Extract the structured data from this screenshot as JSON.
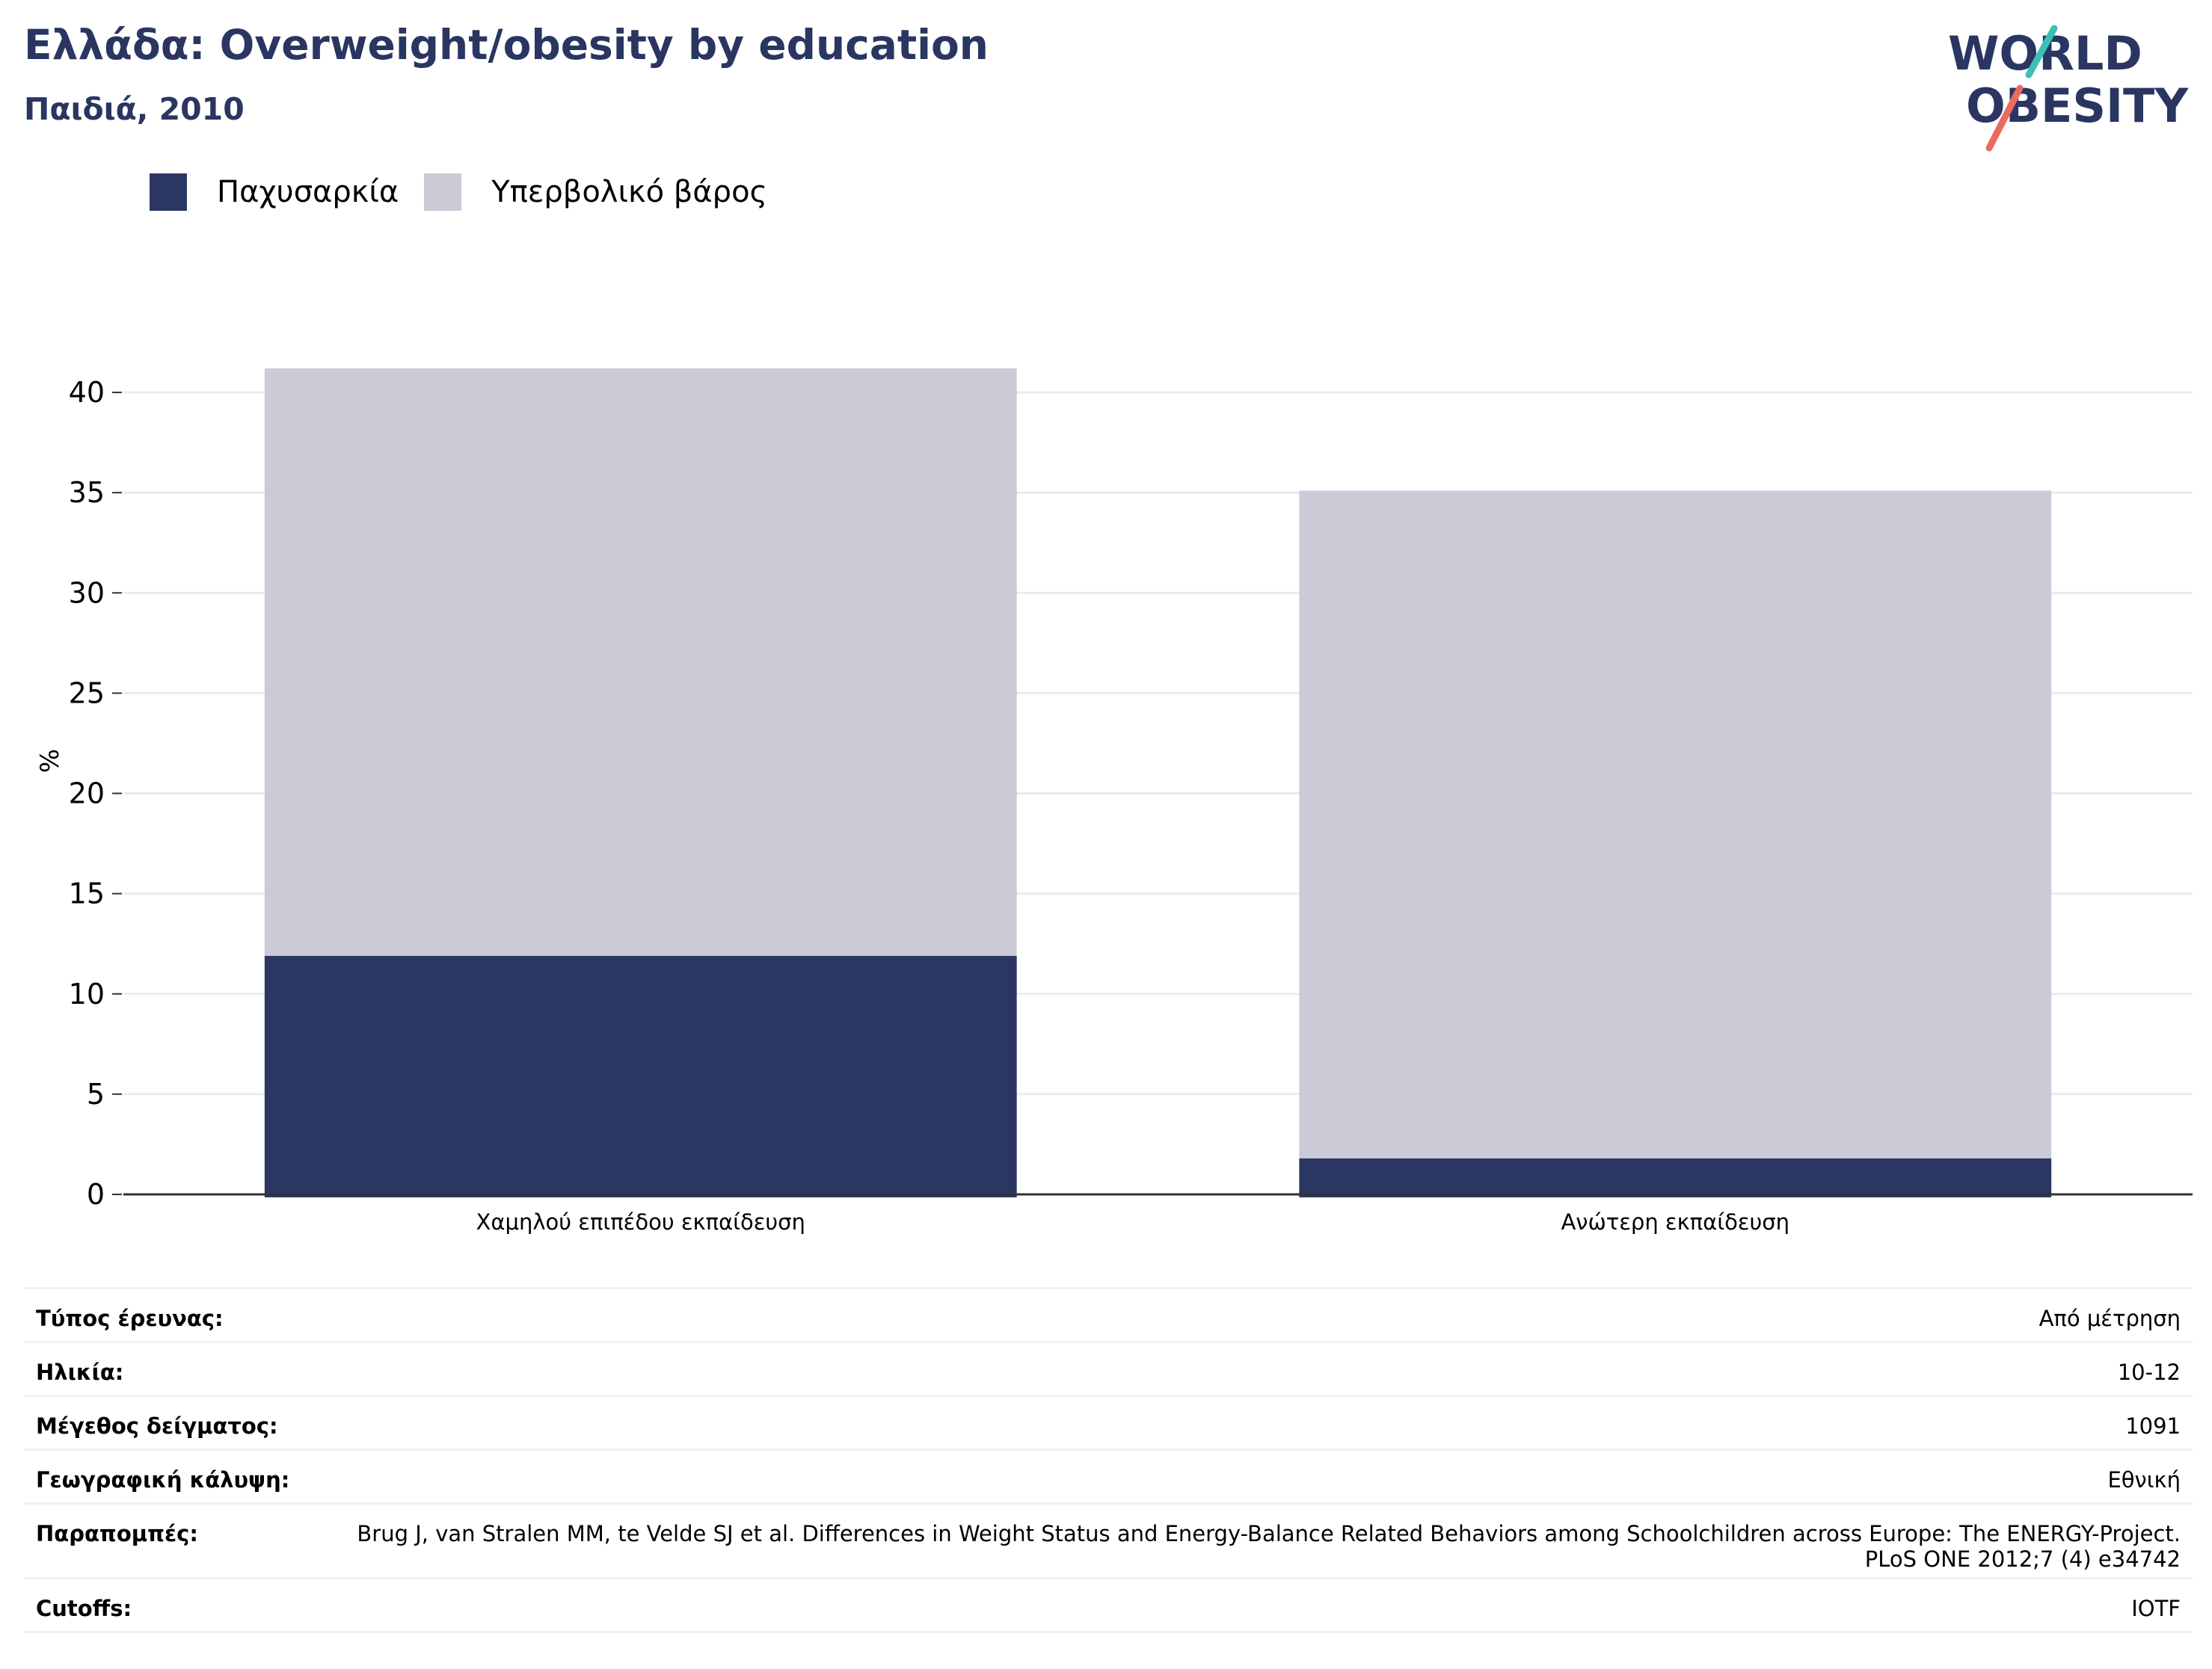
{
  "header": {
    "title": "Ελλάδα: Overweight/obesity by education",
    "subtitle": "Παιδιά, 2010"
  },
  "logo": {
    "line1": "WORLD",
    "line2": "OBESITY"
  },
  "colors": {
    "obesity": "#2b3663",
    "overweight": "#cacbd7",
    "title": "#2a3661",
    "grid": "#ebebeb",
    "axis": "#333333",
    "logo_teal": "#3bbfb7",
    "logo_coral": "#ea6b5e"
  },
  "chart_data": {
    "type": "bar",
    "stacked": true,
    "categories": [
      "Χαμηλού επιπέδου εκπαίδευση",
      "Ανώτερη εκπαίδευση"
    ],
    "series": [
      {
        "name": "Παχυσαρκία",
        "values": [
          11.9,
          1.8
        ],
        "color": "#2b3663"
      },
      {
        "name": "Υπερβολικό βάρος",
        "values": [
          29.3,
          33.3
        ],
        "color": "#cacbd7"
      }
    ],
    "ylabel": "%",
    "ylim": [
      0,
      42
    ],
    "yticks": [
      0,
      5,
      10,
      15,
      20,
      25,
      30,
      35,
      40
    ],
    "grid": true,
    "legend": "top-left"
  },
  "info": [
    {
      "label": "Τύπος έρευνας:",
      "value": "Από μέτρηση"
    },
    {
      "label": "Ηλικία:",
      "value": "10-12"
    },
    {
      "label": "Μέγεθος δείγματος:",
      "value": "1091"
    },
    {
      "label": "Γεωγραφική κάλυψη:",
      "value": "Εθνική"
    },
    {
      "label": "Παραπομπές:",
      "value": "Brug J, van Stralen MM, te Velde SJ et al. Differences in Weight Status and Energy-Balance Related Behaviors among Schoolchildren across Europe: The ENERGY-Project. PLoS ONE 2012;7 (4) e34742"
    },
    {
      "label": "Cutoffs:",
      "value": "IOTF"
    }
  ]
}
